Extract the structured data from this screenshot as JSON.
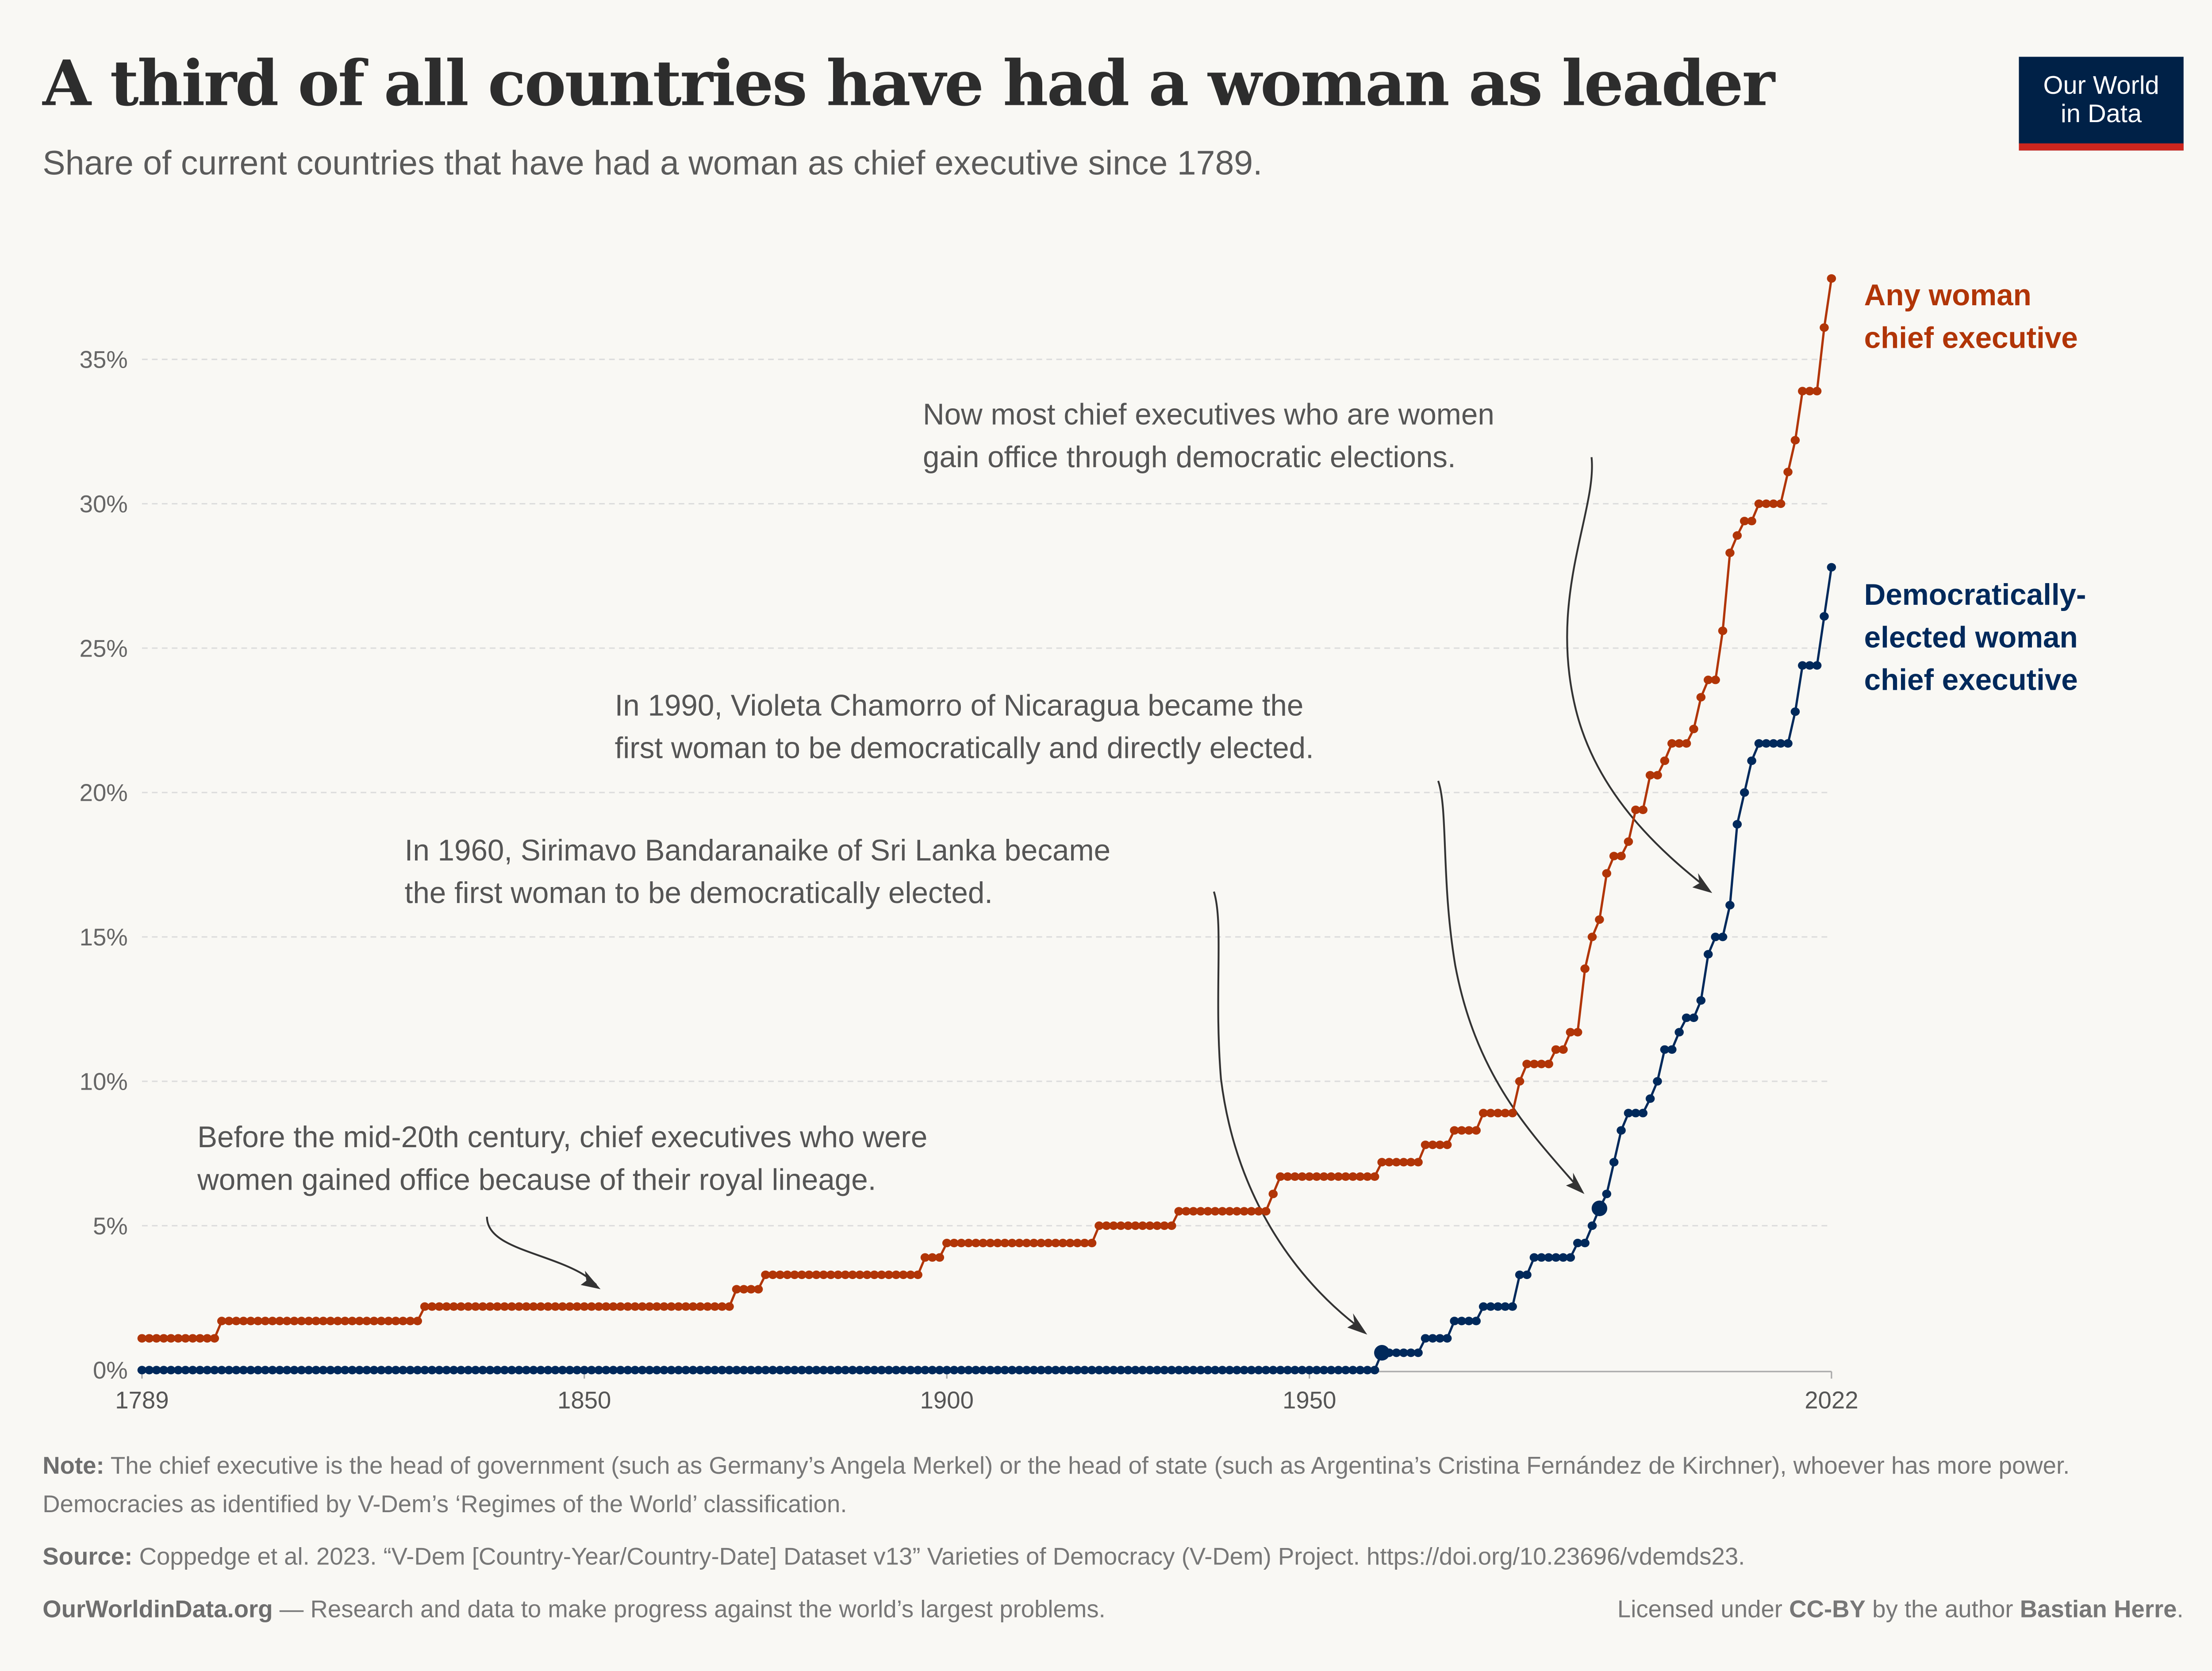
{
  "header": {
    "title": "A third of all countries have had a woman as leader",
    "subtitle": "Share of current countries that have had a woman as chief executive since 1789.",
    "logo": [
      "Our World",
      "in Data"
    ]
  },
  "chart_data": {
    "type": "line",
    "xlim": [
      1789,
      2022
    ],
    "ylim": [
      0,
      37
    ],
    "x_ticks": [
      "1789",
      "1850",
      "1900",
      "1950",
      "2022"
    ],
    "y_ticks": [
      "0%",
      "5%",
      "10%",
      "15%",
      "20%",
      "25%",
      "30%",
      "35%"
    ],
    "y_tick_values": [
      0,
      5,
      10,
      15,
      20,
      25,
      30,
      35
    ],
    "grid": "horizontal dashed",
    "legend": "right (labels at line ends)",
    "series": [
      {
        "name": "Any woman chief executive",
        "label_lines": [
          "Any woman",
          "chief executive"
        ],
        "color": "#b13507",
        "steps": [
          [
            1789,
            1.1
          ],
          [
            1800,
            1.7
          ],
          [
            1828,
            2.2
          ],
          [
            1871,
            2.8
          ],
          [
            1875,
            3.3
          ],
          [
            1897,
            3.9
          ],
          [
            1900,
            4.4
          ],
          [
            1921,
            5.0
          ],
          [
            1932,
            5.5
          ],
          [
            1945,
            6.1
          ],
          [
            1946,
            6.7
          ],
          [
            1960,
            7.2
          ],
          [
            1966,
            7.8
          ],
          [
            1970,
            8.3
          ],
          [
            1974,
            8.9
          ],
          [
            1979,
            10.0
          ],
          [
            1980,
            10.6
          ],
          [
            1984,
            11.1
          ],
          [
            1986,
            11.7
          ],
          [
            1988,
            13.9
          ],
          [
            1989,
            15.0
          ],
          [
            1990,
            15.6
          ],
          [
            1991,
            17.2
          ],
          [
            1992,
            17.8
          ],
          [
            1994,
            18.3
          ],
          [
            1995,
            19.4
          ],
          [
            1997,
            20.6
          ],
          [
            1999,
            21.1
          ],
          [
            2000,
            21.7
          ],
          [
            2003,
            22.2
          ],
          [
            2004,
            23.3
          ],
          [
            2005,
            23.9
          ],
          [
            2007,
            25.6
          ],
          [
            2008,
            28.3
          ],
          [
            2009,
            28.9
          ],
          [
            2010,
            29.4
          ],
          [
            2012,
            30.0
          ],
          [
            2016,
            31.1
          ],
          [
            2017,
            32.2
          ],
          [
            2018,
            33.9
          ],
          [
            2021,
            36.1
          ],
          [
            2022,
            37.8
          ]
        ]
      },
      {
        "name": "Democratically-elected woman chief executive",
        "label_lines": [
          "Democratically-",
          "elected woman",
          "chief executive"
        ],
        "color": "#00295b",
        "steps": [
          [
            1789,
            0
          ],
          [
            1960,
            0.6
          ],
          [
            1966,
            1.1
          ],
          [
            1970,
            1.7
          ],
          [
            1974,
            2.2
          ],
          [
            1979,
            3.3
          ],
          [
            1981,
            3.9
          ],
          [
            1987,
            4.4
          ],
          [
            1989,
            5.0
          ],
          [
            1990,
            5.6
          ],
          [
            1991,
            6.1
          ],
          [
            1992,
            7.2
          ],
          [
            1993,
            8.3
          ],
          [
            1994,
            8.9
          ],
          [
            1997,
            9.4
          ],
          [
            1998,
            10.0
          ],
          [
            1999,
            11.1
          ],
          [
            2001,
            11.7
          ],
          [
            2002,
            12.2
          ],
          [
            2004,
            12.8
          ],
          [
            2005,
            14.4
          ],
          [
            2006,
            15.0
          ],
          [
            2008,
            16.1
          ],
          [
            2009,
            18.9
          ],
          [
            2010,
            20.0
          ],
          [
            2011,
            21.1
          ],
          [
            2012,
            21.7
          ],
          [
            2017,
            22.8
          ],
          [
            2018,
            24.4
          ],
          [
            2021,
            26.1
          ],
          [
            2022,
            27.8
          ]
        ],
        "highlighted_years": [
          1960,
          1990
        ]
      }
    ],
    "annotations": [
      [
        "Now most chief executives who are women",
        "gain office through democratic elections."
      ],
      [
        "In 1990, Violeta Chamorro of Nicaragua became the",
        "first woman to be democratically and directly elected."
      ],
      [
        "In 1960, Sirimavo Bandaranaike of Sri Lanka became",
        "the first woman to be democratically elected."
      ],
      [
        "Before the mid-20th century, chief executives who were",
        "women gained office because of their royal lineage."
      ]
    ]
  },
  "footer": {
    "note_label": "Note:",
    "note": " The chief executive is the head of government (such as Germany’s Angela Merkel) or the head of state (such as Argentina’s Cristina Fernández de Kirchner), whoever has more power. Democracies as identified by V-Dem’s ‘Regimes of the World’ classification.",
    "source_label": "Source:",
    "source": " Coppedge et al. 2023. “V-Dem [Country-Year/Country-Date] Dataset v13” Varieties of Democracy (V-Dem) Project. https://doi.org/10.23696/vdemds23.",
    "site": "OurWorldinData.org",
    "tagline": " — Research and data to make progress against the world’s largest problems.",
    "license_pre": "Licensed under ",
    "license": "CC-BY",
    "license_mid": " by the author ",
    "author": "Bastian Herre",
    "license_end": "."
  }
}
